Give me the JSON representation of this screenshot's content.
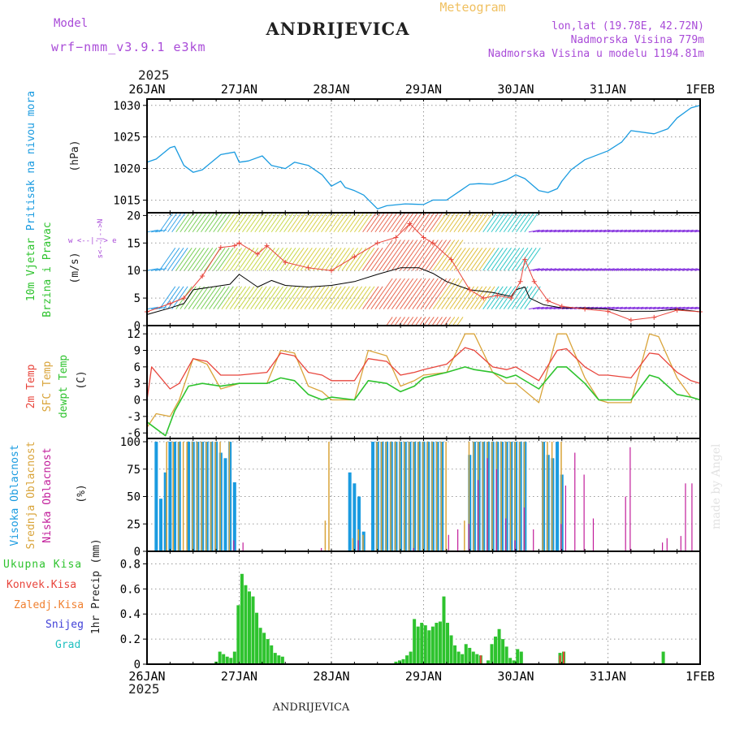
{
  "header": {
    "title": "ANDRIJEVICA",
    "subtitle": "Meteogram",
    "model_label": "Model",
    "model_name": "wrf−nmm_v3.9.1  e3km",
    "coords": "lon,lat (19.78E, 42.72N)",
    "elevation": "Nadmorska Visina 779m",
    "model_elevation": "Nadmorska Visina u modelu 1194.81m",
    "year": "2025",
    "footer": "ANDRIJEVICA",
    "watermark": "made by Angel"
  },
  "colors": {
    "pressure": "#1a9be0",
    "temp": "#e8453c",
    "sfc": "#d9a43a",
    "dew": "#2ec32e",
    "wind": "#000000",
    "gust": "#e8453c",
    "cloud_high": "#1a9be0",
    "cloud_mid": "#d9a43a",
    "cloud_low": "#c21e9b",
    "precip_total": "#2ec32e",
    "precip_conv": "#e8453c",
    "header_purple": "#a94bd8",
    "header_orange": "#f0c060"
  },
  "time_axis": {
    "labels": [
      "26JAN",
      "27JAN",
      "28JAN",
      "29JAN",
      "30JAN",
      "31JAN",
      "1FEB"
    ],
    "days_span": 6
  },
  "chart_data": [
    {
      "id": "pressure",
      "type": "line",
      "title": "Pritisak na nivou mora",
      "ylabel": "(hPa)",
      "ylim": [
        1013,
        1031
      ],
      "yticks": [
        1015,
        1020,
        1025,
        1030
      ],
      "series": [
        {
          "name": "Pritisak na nivou mora",
          "x": [
            0,
            0.1,
            0.25,
            0.3,
            0.4,
            0.5,
            0.6,
            0.8,
            0.95,
            1.0,
            1.1,
            1.25,
            1.35,
            1.5,
            1.6,
            1.75,
            1.9,
            2.0,
            2.1,
            2.15,
            2.25,
            2.35,
            2.5,
            2.6,
            2.8,
            3.0,
            3.1,
            3.25,
            3.4,
            3.5,
            3.6,
            3.75,
            3.9,
            4.0,
            4.1,
            4.25,
            4.35,
            4.45,
            4.5,
            4.6,
            4.75,
            5.0,
            5.15,
            5.25,
            5.5,
            5.65,
            5.75,
            5.9,
            6.0
          ],
          "values": [
            1021,
            1021.5,
            1023.3,
            1023.5,
            1020.5,
            1019.4,
            1019.8,
            1022.2,
            1022.6,
            1021,
            1021.2,
            1022,
            1020.5,
            1020,
            1021,
            1020.5,
            1019,
            1017.2,
            1018,
            1017,
            1016.5,
            1015.8,
            1013.6,
            1014.1,
            1014.4,
            1014.3,
            1015,
            1015,
            1016.5,
            1017.5,
            1017.6,
            1017.5,
            1018.2,
            1019,
            1018.4,
            1016.5,
            1016.2,
            1016.8,
            1018,
            1019.8,
            1021.4,
            1022.8,
            1024.2,
            1026,
            1025.5,
            1026.3,
            1028,
            1029.6,
            1030
          ]
        }
      ]
    },
    {
      "id": "wind",
      "type": "line",
      "title": "10m Vjetar",
      "title2": "Brzina i Pravac",
      "ylabel": "(m/s)",
      "compass": "w <--|--> e",
      "compass_vertical": "s<--|-->N",
      "ylim": [
        0,
        20.5
      ],
      "yticks": [
        0,
        5,
        10,
        15,
        20
      ],
      "barb_rows": [
        3,
        10,
        17
      ],
      "series": [
        {
          "name": "Brzina vjetra",
          "x": [
            0,
            0.25,
            0.4,
            0.5,
            0.7,
            0.9,
            1.0,
            1.2,
            1.35,
            1.5,
            1.75,
            2.0,
            2.25,
            2.5,
            2.75,
            2.95,
            3.1,
            3.25,
            3.5,
            3.75,
            3.95,
            4.0,
            4.1,
            4.15,
            4.3,
            4.5,
            4.75,
            5.0,
            5.15,
            5.5,
            5.75,
            6.0
          ],
          "values": [
            2,
            3.2,
            4,
            6.5,
            7,
            7.5,
            9.3,
            7,
            8.2,
            7.3,
            7,
            7.3,
            8,
            9.3,
            10.5,
            10.5,
            9.5,
            8,
            6.5,
            6,
            5.3,
            6.5,
            7,
            5,
            3.8,
            3.2,
            3.2,
            3,
            2.6,
            2.6,
            3,
            2.5
          ]
        },
        {
          "name": "Udari vjetra",
          "x": [
            0,
            0.25,
            0.4,
            0.6,
            0.8,
            0.95,
            1.0,
            1.2,
            1.3,
            1.5,
            1.75,
            2.0,
            2.25,
            2.5,
            2.7,
            2.85,
            3.0,
            3.1,
            3.3,
            3.5,
            3.65,
            3.8,
            3.95,
            4.05,
            4.1,
            4.2,
            4.35,
            4.5,
            4.75,
            5.0,
            5.25,
            5.5,
            5.75,
            6.0
          ],
          "values": [
            2.5,
            4,
            5,
            9,
            14.2,
            14.5,
            15,
            13,
            14.5,
            11.5,
            10.5,
            10,
            12.5,
            15,
            16,
            18.5,
            16,
            15,
            12,
            6.5,
            5,
            5.5,
            5,
            8,
            12,
            8,
            4.5,
            3.5,
            3,
            2.6,
            1,
            1.5,
            2.8,
            2.5
          ]
        }
      ]
    },
    {
      "id": "temperature",
      "type": "line",
      "title": "2m Temp",
      "title2": "SFC Temp",
      "title3": "dewpt Temp",
      "ylabel": "(C)",
      "ylim": [
        -7,
        13.5
      ],
      "yticks": [
        -6,
        -3,
        0,
        3,
        6,
        9,
        12
      ],
      "series": [
        {
          "name": "2m Temp",
          "x": [
            0,
            0.05,
            0.25,
            0.35,
            0.5,
            0.65,
            0.8,
            1.0,
            1.3,
            1.45,
            1.6,
            1.75,
            1.9,
            2.0,
            2.25,
            2.4,
            2.6,
            2.75,
            2.9,
            3.0,
            3.25,
            3.45,
            3.55,
            3.75,
            3.9,
            4.0,
            4.25,
            4.45,
            4.55,
            4.75,
            4.9,
            5.0,
            5.25,
            5.45,
            5.55,
            5.75,
            5.9,
            6.0
          ],
          "values": [
            0,
            6,
            2,
            3,
            7.5,
            7,
            4.5,
            4.5,
            5,
            8.5,
            8,
            5,
            4.5,
            3.5,
            3.5,
            7.5,
            7,
            4.5,
            5,
            5.5,
            6.5,
            9.5,
            9,
            6,
            5.5,
            6,
            3.5,
            9,
            9.3,
            6,
            4.5,
            4.5,
            4,
            8.5,
            8.3,
            5,
            3.5,
            3
          ]
        },
        {
          "name": "SFC Temp",
          "x": [
            0,
            0.1,
            0.25,
            0.35,
            0.5,
            0.65,
            0.8,
            1.0,
            1.3,
            1.45,
            1.6,
            1.75,
            1.9,
            2.0,
            2.25,
            2.4,
            2.6,
            2.75,
            2.9,
            3.0,
            3.25,
            3.45,
            3.55,
            3.75,
            3.9,
            4.0,
            4.25,
            4.45,
            4.55,
            4.75,
            4.9,
            5.0,
            5.25,
            5.45,
            5.55,
            5.75,
            5.9,
            6.0
          ],
          "values": [
            -5,
            -2.5,
            -3,
            0,
            7.5,
            6.5,
            2,
            3,
            3,
            9,
            8.5,
            2.5,
            1.5,
            0,
            0,
            9,
            8,
            2.5,
            3.5,
            4.5,
            5,
            12,
            12,
            5,
            3,
            3,
            -0.5,
            12,
            12,
            4,
            0,
            -0.5,
            -0.5,
            12,
            11.5,
            4,
            0.5,
            0
          ]
        },
        {
          "name": "dewpt Temp",
          "x": [
            0,
            0.2,
            0.3,
            0.45,
            0.6,
            0.8,
            1.0,
            1.3,
            1.45,
            1.6,
            1.75,
            1.9,
            2.0,
            2.25,
            2.4,
            2.6,
            2.75,
            2.9,
            3.0,
            3.25,
            3.45,
            3.55,
            3.75,
            3.9,
            4.0,
            4.25,
            4.45,
            4.55,
            4.75,
            4.9,
            5.0,
            5.25,
            5.45,
            5.55,
            5.75,
            5.9,
            6.0
          ],
          "values": [
            -4,
            -6.5,
            -2,
            2.5,
            3,
            2.5,
            3,
            3,
            4,
            3.5,
            1,
            0,
            0.5,
            0,
            3.5,
            3,
            1.5,
            2.5,
            4,
            5,
            6,
            5.5,
            5,
            4,
            4.5,
            2,
            6,
            6,
            3,
            0,
            0,
            0,
            4.5,
            4,
            1,
            0.5,
            0
          ]
        }
      ]
    },
    {
      "id": "clouds",
      "type": "bar",
      "title": "Visoka Oblacnost",
      "title2": "Srednja Oblacnost",
      "title3": "Niska Oblacnost",
      "ylabel": "(%)",
      "ylim": [
        0,
        103
      ],
      "yticks": [
        0,
        25,
        50,
        75,
        100
      ],
      "series": [
        {
          "name": "Visoka Oblacnost",
          "x": [
            0.1,
            0.15,
            0.2,
            0.25,
            0.3,
            0.35,
            0.45,
            0.5,
            0.55,
            0.6,
            0.65,
            0.7,
            0.75,
            0.8,
            0.85,
            0.9,
            0.95,
            2.2,
            2.25,
            2.3,
            2.35,
            2.45,
            2.5,
            2.55,
            2.6,
            2.65,
            2.7,
            2.75,
            2.8,
            2.85,
            2.9,
            2.95,
            3.0,
            3.05,
            3.1,
            3.15,
            3.2,
            3.5,
            3.55,
            3.6,
            3.65,
            3.7,
            3.75,
            3.8,
            3.85,
            3.9,
            3.95,
            4.0,
            4.05,
            4.1,
            4.3,
            4.35,
            4.4,
            4.45,
            4.5
          ],
          "values": [
            100,
            48,
            72,
            100,
            100,
            100,
            100,
            100,
            100,
            100,
            100,
            100,
            100,
            90,
            85,
            100,
            63,
            72,
            62,
            50,
            18,
            100,
            100,
            100,
            100,
            100,
            100,
            100,
            100,
            100,
            100,
            100,
            100,
            100,
            100,
            100,
            100,
            88,
            100,
            100,
            100,
            100,
            100,
            100,
            100,
            100,
            100,
            100,
            100,
            100,
            100,
            88,
            85,
            100,
            70
          ]
        },
        {
          "name": "Srednja Oblacnost",
          "x": [
            0.2,
            0.27,
            0.33,
            0.38,
            0.42,
            0.48,
            0.53,
            0.58,
            0.63,
            0.68,
            0.73,
            0.78,
            0.88,
            1.92,
            1.96,
            2.22,
            2.28,
            2.33,
            2.48,
            2.53,
            2.58,
            2.63,
            2.68,
            2.73,
            2.78,
            2.83,
            2.88,
            2.93,
            2.98,
            3.03,
            3.08,
            3.13,
            3.18,
            3.23,
            3.43,
            3.48,
            3.53,
            3.58,
            3.63,
            3.68,
            3.73,
            3.78,
            3.83,
            3.88,
            3.93,
            3.98,
            4.03,
            4.08,
            4.28,
            4.33,
            4.38,
            4.48
          ],
          "values": [
            100,
            100,
            100,
            100,
            100,
            100,
            100,
            100,
            100,
            100,
            100,
            100,
            100,
            28,
            100,
            12,
            20,
            15,
            100,
            100,
            100,
            100,
            100,
            100,
            100,
            100,
            100,
            100,
            100,
            100,
            100,
            100,
            100,
            100,
            28,
            100,
            100,
            100,
            100,
            100,
            100,
            100,
            100,
            100,
            100,
            100,
            100,
            100,
            100,
            100,
            100,
            100
          ]
        },
        {
          "name": "Niska Oblacnost",
          "x": [
            0.95,
            1.05,
            1.9,
            2.3,
            2.9,
            3.28,
            3.38,
            3.5,
            3.6,
            3.7,
            3.8,
            3.9,
            4.0,
            4.1,
            4.2,
            4.5,
            4.55,
            4.65,
            4.75,
            4.85,
            5.2,
            5.25,
            5.6,
            5.65,
            5.8,
            5.85,
            5.92
          ],
          "values": [
            10,
            8,
            3,
            10,
            3,
            15,
            20,
            25,
            65,
            85,
            75,
            30,
            10,
            40,
            20,
            25,
            60,
            90,
            70,
            30,
            50,
            95,
            8,
            12,
            14,
            62,
            62
          ]
        }
      ]
    },
    {
      "id": "precipitation",
      "type": "bar",
      "title": "1hr Precip",
      "ylabel": "(mm)",
      "ylim": [
        0,
        0.9
      ],
      "yticks": [
        0,
        0.2,
        0.4,
        0.6,
        0.8
      ],
      "legend": [
        "Ukupna Kisa",
        "Konvek.Kisa",
        "Zaledj.Kisa",
        "Snijeg",
        "Grad"
      ],
      "series": [
        {
          "name": "Ukupna Kisa",
          "x": [
            0.75,
            0.79,
            0.83,
            0.87,
            0.91,
            0.95,
            0.99,
            1.03,
            1.07,
            1.11,
            1.15,
            1.19,
            1.23,
            1.27,
            1.31,
            1.35,
            1.39,
            1.43,
            1.47,
            2.7,
            2.74,
            2.78,
            2.82,
            2.86,
            2.9,
            2.94,
            2.98,
            3.02,
            3.06,
            3.1,
            3.14,
            3.18,
            3.22,
            3.26,
            3.3,
            3.34,
            3.38,
            3.42,
            3.46,
            3.5,
            3.54,
            3.58,
            3.62,
            3.7,
            3.74,
            3.78,
            3.82,
            3.86,
            3.9,
            3.94,
            3.98,
            4.02,
            4.06,
            4.48,
            4.52,
            5.6
          ],
          "values": [
            0.02,
            0.1,
            0.08,
            0.06,
            0.05,
            0.1,
            0.47,
            0.72,
            0.63,
            0.58,
            0.54,
            0.41,
            0.29,
            0.25,
            0.2,
            0.15,
            0.09,
            0.07,
            0.06,
            0.02,
            0.03,
            0.04,
            0.07,
            0.1,
            0.36,
            0.3,
            0.33,
            0.31,
            0.27,
            0.3,
            0.33,
            0.34,
            0.54,
            0.33,
            0.23,
            0.15,
            0.1,
            0.08,
            0.16,
            0.13,
            0.1,
            0.08,
            0.07,
            0.03,
            0.16,
            0.22,
            0.28,
            0.2,
            0.14,
            0.05,
            0.03,
            0.12,
            0.1,
            0.09,
            0.1,
            0.1
          ]
        },
        {
          "name": "Konvek.Kisa",
          "x": [
            3.62,
            4.48,
            4.52
          ],
          "values": [
            0.07,
            0.07,
            0.1
          ]
        }
      ]
    }
  ]
}
